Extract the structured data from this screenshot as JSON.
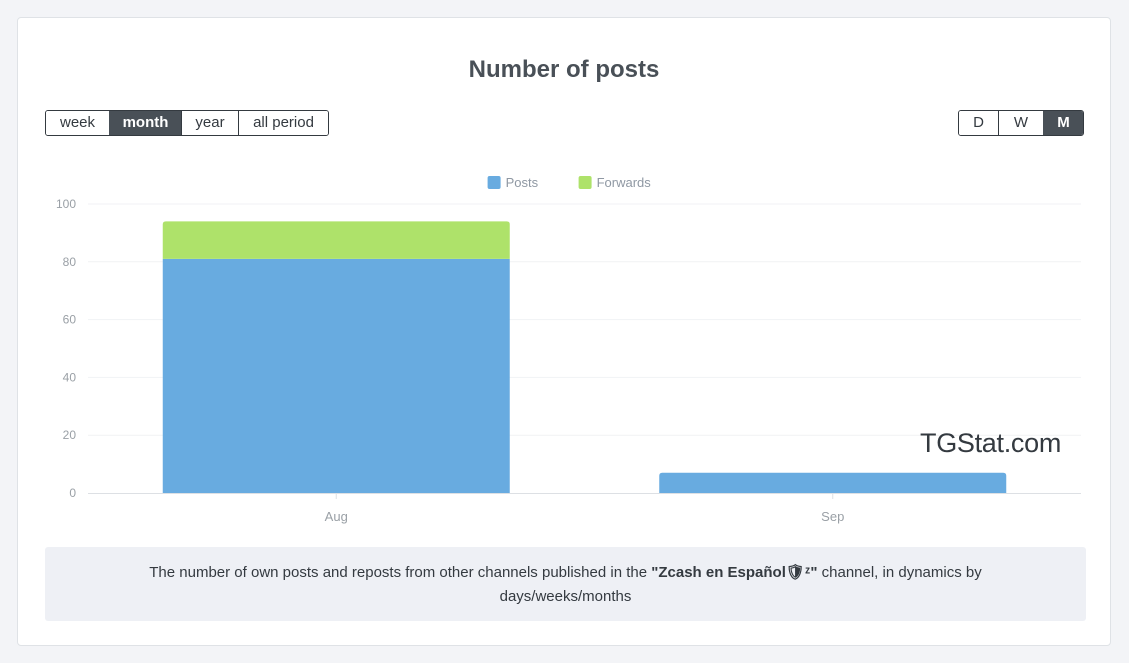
{
  "title": "Number of posts",
  "period_buttons": [
    {
      "label": "week",
      "active": false
    },
    {
      "label": "month",
      "active": true
    },
    {
      "label": "year",
      "active": false
    },
    {
      "label": "all period",
      "active": false
    }
  ],
  "granularity_buttons": [
    {
      "label": "D",
      "active": false
    },
    {
      "label": "W",
      "active": false
    },
    {
      "label": "M",
      "active": true
    }
  ],
  "watermark": "TGStat.com",
  "description": {
    "before": "The number of own posts and reposts from other channels published in the ",
    "channel": "\"Zcash en Español🛡ᶻ\"",
    "after": " channel, in dynamics by days/weeks/months"
  },
  "colors": {
    "posts": "#68abe0",
    "forwards": "#aee26a",
    "active_button": "#495057"
  },
  "chart_data": {
    "type": "bar",
    "stacked": true,
    "categories": [
      "Aug",
      "Sep"
    ],
    "series": [
      {
        "name": "Posts",
        "values": [
          81,
          7
        ],
        "color": "#68abe0"
      },
      {
        "name": "Forwards",
        "values": [
          13,
          0
        ],
        "color": "#aee26a"
      }
    ],
    "ylim": [
      0,
      100
    ],
    "yticks": [
      0,
      20,
      40,
      60,
      80,
      100
    ],
    "legend": "top-center",
    "grid": true
  }
}
